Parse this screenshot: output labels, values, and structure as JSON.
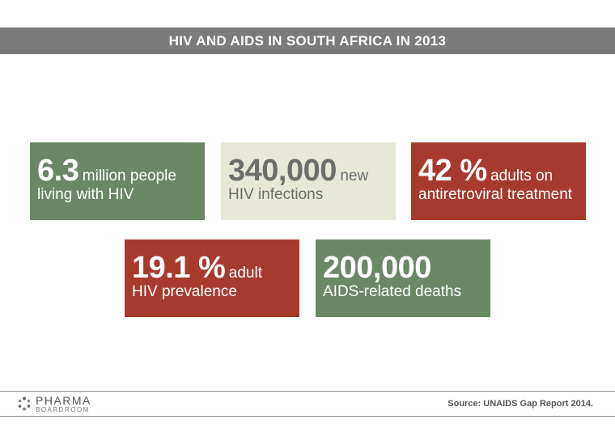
{
  "title": "HIV AND AIDS IN SOUTH AFRICA IN 2013",
  "stats": [
    {
      "value": "6.3",
      "suffix": "million people",
      "line2": "living with HIV",
      "color": "#6a8866"
    },
    {
      "value": "340,000",
      "suffix": "new",
      "line2": "HIV infections",
      "color": "#e8e8d9"
    },
    {
      "value": "42 %",
      "suffix": "adults on",
      "line2": "antiretroviral treatment",
      "color": "#a63b2d"
    },
    {
      "value": "19.1 %",
      "suffix": "adult",
      "line2": "HIV prevalence",
      "color": "#a63b2d"
    },
    {
      "value": "200,000",
      "suffix": "",
      "line2": "AIDS-related deaths",
      "color": "#6a8866"
    }
  ],
  "footer": {
    "logo_line1": "PHARMA",
    "logo_line2": "BOARDROOM",
    "source": "Source: UNAIDS Gap Report 2014."
  }
}
